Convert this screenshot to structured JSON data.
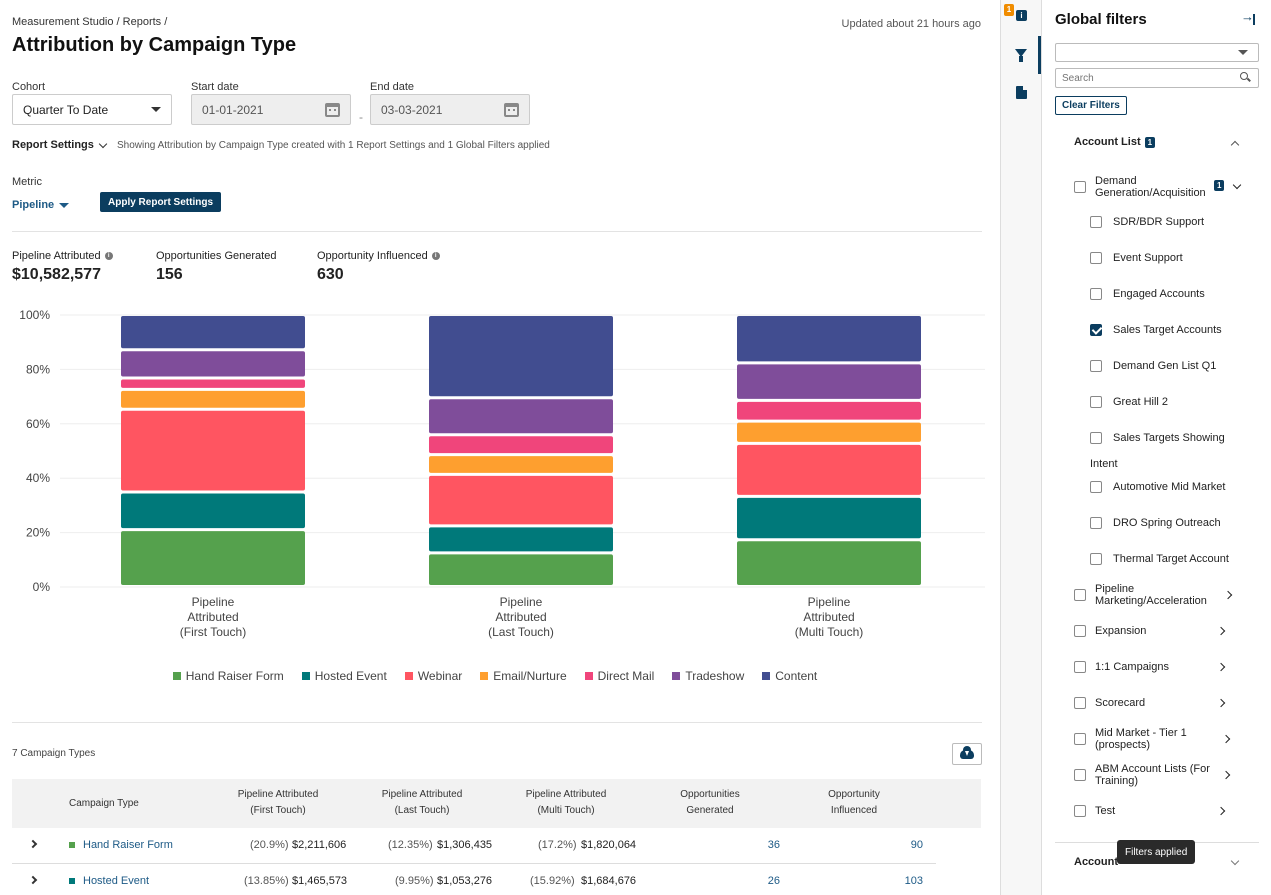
{
  "breadcrumb": "Measurement Studio / Reports /",
  "updated": "Updated about 21 hours ago",
  "page_title": "Attribution by Campaign Type",
  "cohort": {
    "label": "Cohort",
    "value": "Quarter To Date"
  },
  "start_date": {
    "label": "Start date",
    "value": "01-01-2021"
  },
  "end_date": {
    "label": "End date",
    "value": "03-03-2021"
  },
  "date_separator": "-",
  "report_settings": {
    "label": "Report Settings",
    "description": "Showing Attribution by Campaign Type created with 1 Report Settings and 1 Global Filters applied"
  },
  "metric": {
    "label": "Metric",
    "value": "Pipeline"
  },
  "apply_button": "Apply Report Settings",
  "kpis": [
    {
      "label": "Pipeline Attributed",
      "value": "$10,582,577"
    },
    {
      "label": "Opportunities Generated",
      "value": "156"
    },
    {
      "label": "Opportunity Influenced",
      "value": "630"
    }
  ],
  "colors": {
    "Hand Raiser Form": "#55a14d",
    "Hosted Event": "#00797a",
    "Webinar": "#ff5561",
    "Email/Nurture": "#fe9f2f",
    "Direct Mail": "#f0457b",
    "Tradeshow": "#7f4d9a",
    "Content": "#414d90"
  },
  "chart_data": {
    "type": "bar",
    "stacked": true,
    "categories": [
      "Pipeline Attributed (First Touch)",
      "Pipeline Attributed (Last Touch)",
      "Pipeline Attributed (Multi Touch)"
    ],
    "category_lines": [
      [
        "Pipeline",
        "Attributed",
        "(First Touch)"
      ],
      [
        "Pipeline",
        "Attributed",
        "(Last Touch)"
      ],
      [
        "Pipeline",
        "Attributed",
        "(Multi Touch)"
      ]
    ],
    "series": [
      {
        "name": "Hand Raiser Form",
        "values": [
          20.9,
          12.35,
          17.2
        ]
      },
      {
        "name": "Hosted Event",
        "values": [
          13.85,
          9.95,
          15.92
        ]
      },
      {
        "name": "Webinar",
        "values": [
          30.4,
          18.9,
          19.5
        ]
      },
      {
        "name": "Email/Nurture",
        "values": [
          7.3,
          7.3,
          8.2
        ]
      },
      {
        "name": "Direct Mail",
        "values": [
          4.2,
          7.3,
          7.6
        ]
      },
      {
        "name": "Tradeshow",
        "values": [
          10.4,
          13.6,
          13.8
        ]
      },
      {
        "name": "Content",
        "values": [
          12.95,
          30.6,
          17.78
        ]
      }
    ],
    "yticks": [
      "0%",
      "20%",
      "40%",
      "60%",
      "80%",
      "100%"
    ],
    "ylim": [
      0,
      100
    ],
    "xlabel": "",
    "ylabel": ""
  },
  "table": {
    "count_label": "7 Campaign Types",
    "headers": [
      [
        "Campaign Type"
      ],
      [
        "Pipeline Attributed",
        "(First Touch)"
      ],
      [
        "Pipeline Attributed",
        "(Last Touch)"
      ],
      [
        "Pipeline Attributed",
        "(Multi Touch)"
      ],
      [
        "Opportunities",
        "Generated"
      ],
      [
        "Opportunity",
        "Influenced"
      ]
    ],
    "rows": [
      {
        "name": "Hand Raiser Form",
        "first_pct": "(20.9%)",
        "first_val": "$2,211,606",
        "last_pct": "(12.35%)",
        "last_val": "$1,306,435",
        "multi_pct": "(17.2%)",
        "multi_val": "$1,820,064",
        "opps": "36",
        "influenced": "90"
      },
      {
        "name": "Hosted Event",
        "first_pct": "(13.85%)",
        "first_val": "$1,465,573",
        "last_pct": "(9.95%)",
        "last_val": "$1,053,276",
        "multi_pct": "(15.92%)",
        "multi_val": "$1,684,676",
        "opps": "26",
        "influenced": "103"
      }
    ]
  },
  "rail": {
    "badge": "1",
    "info_glyph": "i"
  },
  "filters": {
    "title": "Global filters",
    "search_placeholder": "Search",
    "clear_button": "Clear Filters",
    "section_title": "Account List",
    "section_badge": "1",
    "group_label": "Demand Generation/Acquisition",
    "group_badge": "1",
    "sub_items": [
      {
        "label": "SDR/BDR Support",
        "checked": false
      },
      {
        "label": "Event Support",
        "checked": false
      },
      {
        "label": "Engaged Accounts",
        "checked": false
      },
      {
        "label": "Sales Target Accounts",
        "checked": true
      },
      {
        "label": "Demand Gen List Q1",
        "checked": false
      },
      {
        "label": "Great Hill 2",
        "checked": false
      },
      {
        "label": "Sales Targets Showing",
        "checked": false
      },
      {
        "label": "Automotive Mid Market",
        "checked": false
      },
      {
        "label": "DRO Spring Outreach",
        "checked": false
      },
      {
        "label": "Thermal Target Account",
        "checked": false
      }
    ],
    "wrap_text": "Intent",
    "groups": [
      "Pipeline Marketing/Acceleration",
      "Expansion",
      "1:1 Campaigns",
      "Scorecard",
      "Mid Market - Tier 1 (prospects)",
      "ABM Account Lists (For Training)",
      "Test"
    ],
    "second_section": "Account",
    "tooltip": "Filters applied"
  }
}
